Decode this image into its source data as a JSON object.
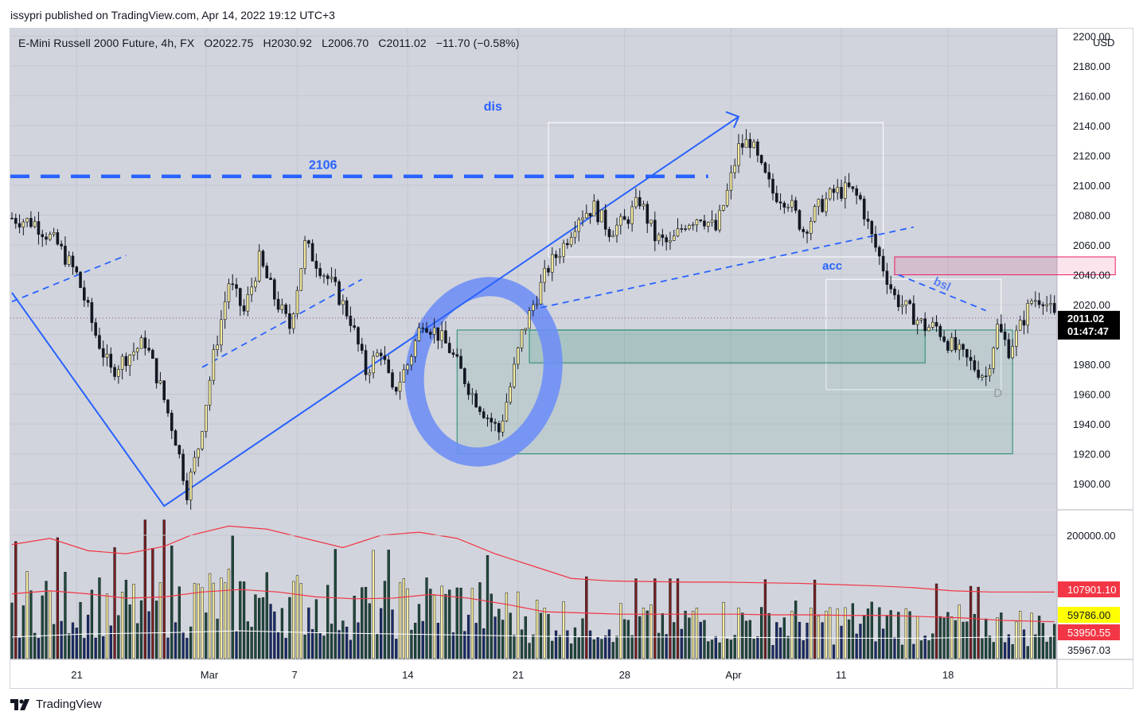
{
  "header": {
    "publish_line": "issypri published on TradingView.com, Apr 14, 2022 19:12 UTC+3"
  },
  "legend": {
    "symbol": "E-Mini Russell 2000 Future, 4h, FX",
    "open": "O2022.75",
    "high": "H2030.92",
    "low": "L2006.70",
    "close": "C2011.02",
    "change": "−11.70 (−0.58%)"
  },
  "footer": {
    "brand": "TradingView"
  },
  "colors": {
    "up": "#f5eb9e",
    "down": "#131722",
    "drawing_blue": "#2962ff",
    "price_bg": "#000000",
    "box_green": "#22896f",
    "box_pink": "#e91e63",
    "ma_red": "#f23645"
  },
  "chart_data": [
    {
      "type": "candlestick",
      "interval": "4h",
      "currency": "USD",
      "x_ticks": [
        "21",
        "Mar",
        "7",
        "14",
        "21",
        "28",
        "Apr",
        "11",
        "18"
      ],
      "y_ticks": [
        "2200.00",
        "2180.00",
        "2160.00",
        "2140.00",
        "2120.00",
        "2100.00",
        "2080.00",
        "2060.00",
        "2040.00",
        "2020.00",
        "2000.00",
        "1980.00",
        "1960.00",
        "1940.00",
        "1920.00",
        "1900.00"
      ],
      "y_range": [
        1883,
        2205
      ],
      "last_price": "2011.02",
      "countdown": "01:47:47",
      "close_path": [
        [
          0,
          2078
        ],
        [
          6,
          2075
        ],
        [
          12,
          2060
        ],
        [
          17,
          2040
        ],
        [
          22,
          2000
        ],
        [
          26,
          1975
        ],
        [
          30,
          1985
        ],
        [
          35,
          1995
        ],
        [
          39,
          1965
        ],
        [
          43,
          1930
        ],
        [
          46,
          1895
        ],
        [
          49,
          1925
        ],
        [
          53,
          1985
        ],
        [
          57,
          2035
        ],
        [
          61,
          2015
        ],
        [
          65,
          2050
        ],
        [
          69,
          2025
        ],
        [
          73,
          2005
        ],
        [
          77,
          2060
        ],
        [
          81,
          2045
        ],
        [
          85,
          2030
        ],
        [
          89,
          2010
        ],
        [
          93,
          1975
        ],
        [
          97,
          1990
        ],
        [
          100,
          1960
        ],
        [
          104,
          1980
        ],
        [
          108,
          2010
        ],
        [
          112,
          2000
        ],
        [
          115,
          1990
        ],
        [
          118,
          1975
        ],
        [
          121,
          1960
        ],
        [
          125,
          1945
        ],
        [
          128,
          1935
        ],
        [
          131,
          1965
        ],
        [
          134,
          2000
        ],
        [
          137,
          2020
        ],
        [
          141,
          2045
        ],
        [
          145,
          2060
        ],
        [
          149,
          2080
        ],
        [
          153,
          2085
        ],
        [
          157,
          2070
        ],
        [
          161,
          2075
        ],
        [
          165,
          2090
        ],
        [
          169,
          2065
        ],
        [
          173,
          2060
        ],
        [
          177,
          2075
        ],
        [
          181,
          2080
        ],
        [
          185,
          2070
        ],
        [
          188,
          2095
        ],
        [
          191,
          2125
        ],
        [
          194,
          2130
        ],
        [
          197,
          2110
        ],
        [
          200,
          2095
        ],
        [
          204,
          2090
        ],
        [
          208,
          2070
        ],
        [
          212,
          2085
        ],
        [
          216,
          2095
        ],
        [
          220,
          2097
        ],
        [
          223,
          2090
        ],
        [
          226,
          2065
        ],
        [
          229,
          2045
        ],
        [
          232,
          2025
        ],
        [
          236,
          2015
        ],
        [
          240,
          2005
        ],
        [
          243,
          2005
        ],
        [
          246,
          1995
        ],
        [
          250,
          1985
        ],
        [
          253,
          1978
        ],
        [
          256,
          1972
        ],
        [
          259,
          2005
        ],
        [
          262,
          1990
        ],
        [
          265,
          2005
        ],
        [
          268,
          2023
        ],
        [
          271,
          2025
        ],
        [
          274,
          2011
        ]
      ],
      "ma_path": [
        [
          0,
          2075
        ],
        [
          10,
          2065
        ],
        [
          20,
          2035
        ],
        [
          30,
          2005
        ],
        [
          40,
          1985
        ],
        [
          50,
          1975
        ],
        [
          60,
          1995
        ],
        [
          70,
          2015
        ],
        [
          80,
          2030
        ],
        [
          90,
          2010
        ],
        [
          100,
          1985
        ],
        [
          110,
          1985
        ],
        [
          120,
          1975
        ],
        [
          130,
          1965
        ],
        [
          140,
          1995
        ],
        [
          150,
          2055
        ],
        [
          160,
          2065
        ],
        [
          170,
          2075
        ],
        [
          180,
          2078
        ],
        [
          190,
          2090
        ],
        [
          200,
          2100
        ],
        [
          210,
          2085
        ],
        [
          220,
          2088
        ],
        [
          230,
          2055
        ],
        [
          240,
          2025
        ],
        [
          250,
          2003
        ],
        [
          260,
          1990
        ],
        [
          274,
          2005
        ]
      ],
      "drawings": {
        "level_label": "2106",
        "level_value": 2106,
        "labels": [
          "dis",
          "acc",
          "bsl",
          "D"
        ],
        "pink_box": [
          232,
          290,
          2040,
          2052
        ],
        "green_box": [
          117,
          263,
          1920,
          2003
        ],
        "inner_green_box": [
          136,
          240,
          1981,
          2003
        ],
        "dis_box": [
          141,
          229,
          2052,
          2142
        ],
        "acc_box": [
          214,
          260,
          1963,
          2037
        ],
        "main_trend": [
          [
            0,
            2028
          ],
          [
            40,
            1885
          ],
          [
            191,
            2146
          ]
        ],
        "dashed_trends": [
          [
            [
              0,
              2022
            ],
            [
              30,
              2053
            ]
          ],
          [
            [
              50,
              1978
            ],
            [
              92,
              2037
            ]
          ],
          [
            [
              139,
              2018
            ],
            [
              237,
              2072
            ]
          ],
          [
            [
              233,
              2040
            ],
            [
              256,
              2016
            ]
          ]
        ]
      }
    },
    {
      "type": "bar",
      "title": "volume",
      "y_ticks": [
        "200000.00"
      ],
      "y_range": [
        0,
        240000
      ],
      "value_labels": [
        {
          "text": "107901.10",
          "color": "#f23645"
        },
        {
          "text": "59786.00",
          "color": "#ffff00"
        },
        {
          "text": "53950.55",
          "color": "#f23645"
        },
        {
          "text": "35967.03",
          "color": "#ffffff"
        }
      ],
      "upper_band": [
        [
          0,
          185000
        ],
        [
          10,
          195000
        ],
        [
          20,
          175000
        ],
        [
          30,
          170000
        ],
        [
          40,
          182000
        ],
        [
          47,
          200000
        ],
        [
          57,
          215000
        ],
        [
          67,
          210000
        ],
        [
          77,
          195000
        ],
        [
          87,
          180000
        ],
        [
          97,
          200000
        ],
        [
          107,
          205000
        ],
        [
          117,
          195000
        ],
        [
          127,
          170000
        ],
        [
          137,
          150000
        ],
        [
          147,
          130000
        ],
        [
          157,
          126000
        ],
        [
          167,
          125000
        ],
        [
          177,
          124000
        ],
        [
          187,
          124000
        ],
        [
          197,
          123000
        ],
        [
          207,
          122000
        ],
        [
          217,
          120000
        ],
        [
          227,
          118000
        ],
        [
          237,
          115000
        ],
        [
          247,
          110000
        ],
        [
          257,
          108000
        ],
        [
          267,
          108000
        ],
        [
          274,
          107901
        ]
      ],
      "mid_band": [
        [
          0,
          105000
        ],
        [
          10,
          110000
        ],
        [
          20,
          105000
        ],
        [
          30,
          98000
        ],
        [
          40,
          100000
        ],
        [
          50,
          108000
        ],
        [
          60,
          112000
        ],
        [
          70,
          108000
        ],
        [
          80,
          100000
        ],
        [
          90,
          97000
        ],
        [
          100,
          98000
        ],
        [
          110,
          104000
        ],
        [
          120,
          98000
        ],
        [
          130,
          88000
        ],
        [
          140,
          76000
        ],
        [
          150,
          74000
        ],
        [
          160,
          72000
        ],
        [
          170,
          72000
        ],
        [
          180,
          72000
        ],
        [
          190,
          72000
        ],
        [
          200,
          71000
        ],
        [
          210,
          71000
        ],
        [
          220,
          70000
        ],
        [
          230,
          70000
        ],
        [
          240,
          68000
        ],
        [
          250,
          66000
        ],
        [
          260,
          62000
        ],
        [
          274,
          59786
        ]
      ],
      "low_band": [
        [
          0,
          35000
        ],
        [
          20,
          40000
        ],
        [
          40,
          42000
        ],
        [
          60,
          45000
        ],
        [
          80,
          42000
        ],
        [
          100,
          40000
        ],
        [
          120,
          38000
        ],
        [
          140,
          36000
        ],
        [
          160,
          35000
        ],
        [
          180,
          35000
        ],
        [
          200,
          34000
        ],
        [
          220,
          33000
        ],
        [
          240,
          33000
        ],
        [
          260,
          35000
        ],
        [
          274,
          35967
        ]
      ]
    }
  ]
}
